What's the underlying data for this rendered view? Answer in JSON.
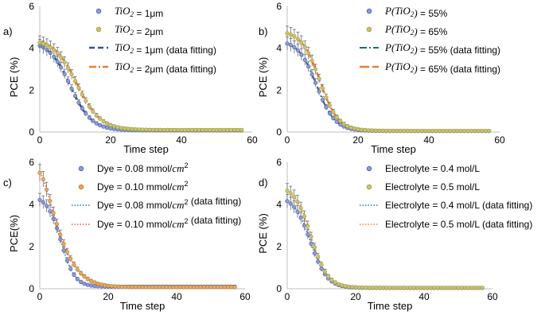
{
  "chart_data": [
    {
      "type": "line",
      "panel_label": "a)",
      "xlabel": "Time step",
      "ylabel": "PCE (%)",
      "xlim": [
        0,
        60
      ],
      "ylim": [
        0,
        6
      ],
      "xticks": [
        "0",
        "20",
        "40",
        "60"
      ],
      "yticks": [
        "0",
        "2",
        "4",
        "6"
      ],
      "legend_position": "top-right",
      "series": [
        {
          "name": "TiO2 = 1μm",
          "legend_parts": [
            [
              "TiO",
              "i"
            ],
            [
              "2",
              "sub"
            ],
            [
              " = 1μm",
              "n"
            ]
          ],
          "kind": "points",
          "color": "#8E9BD6",
          "stroke": "#4A5AA8",
          "model": "sig",
          "params": [
            4.35,
            8.6,
            3.0,
            0.08
          ]
        },
        {
          "name": "TiO2 = 2μm",
          "legend_parts": [
            [
              "TiO",
              "i"
            ],
            [
              "2",
              "sub"
            ],
            [
              " = 2μm",
              "n"
            ]
          ],
          "kind": "points",
          "color": "#C9C46A",
          "stroke": "#9E9A3E",
          "model": "sig",
          "params": [
            4.45,
            10.5,
            3.3,
            0.1
          ]
        },
        {
          "name": "TiO2 = 1μm (data fitting)",
          "legend_parts": [
            [
              "TiO",
              "i"
            ],
            [
              "2",
              "sub"
            ],
            [
              " = 1μm (data fitting)",
              "n"
            ]
          ],
          "kind": "fit",
          "color": "#2F5597",
          "dash": "7,4",
          "width": 2.6,
          "model": "sig",
          "params": [
            4.35,
            8.6,
            3.0,
            0.08
          ]
        },
        {
          "name": "TiO2 = 2μm (data fitting)",
          "legend_parts": [
            [
              "TiO",
              "i"
            ],
            [
              "2",
              "sub"
            ],
            [
              " = 2μm (data fitting)",
              "n"
            ]
          ],
          "kind": "fit",
          "color": "#ED7D31",
          "dash": "9,3,2,3",
          "width": 2.6,
          "model": "sig",
          "params": [
            4.5,
            10.5,
            3.3,
            0.1
          ]
        }
      ]
    },
    {
      "type": "line",
      "panel_label": "b)",
      "xlabel": "Time step",
      "ylabel": "PCE (%)",
      "xlim": [
        0,
        60
      ],
      "ylim": [
        0,
        6
      ],
      "xticks": [
        "0",
        "20",
        "40",
        "60"
      ],
      "yticks": [
        "0",
        "2",
        "4",
        "6"
      ],
      "legend_position": "top-right",
      "series": [
        {
          "name": "P(TiO2) = 55%",
          "legend_parts": [
            [
              "P",
              "i"
            ],
            [
              "(",
              "i"
            ],
            [
              "TiO",
              "i"
            ],
            [
              "2",
              "sub"
            ],
            [
              ")",
              "i"
            ],
            [
              " = 55%",
              "n"
            ]
          ],
          "kind": "points",
          "color": "#8E9BD6",
          "stroke": "#4A5AA8",
          "model": "sig",
          "params": [
            4.4,
            8.3,
            2.6,
            0.05
          ]
        },
        {
          "name": "P(TiO2) = 65%",
          "legend_parts": [
            [
              "P",
              "i"
            ],
            [
              "(",
              "i"
            ],
            [
              "TiO",
              "i"
            ],
            [
              "2",
              "sub"
            ],
            [
              ")",
              "i"
            ],
            [
              " = 65%",
              "n"
            ]
          ],
          "kind": "points",
          "color": "#C9C46A",
          "stroke": "#9E9A3E",
          "model": "sig",
          "params": [
            4.85,
            9.2,
            2.6,
            0.06
          ]
        },
        {
          "name": "P(TiO2) = 55% (data fitting)",
          "legend_parts": [
            [
              "P",
              "i"
            ],
            [
              "(",
              "i"
            ],
            [
              "TiO",
              "i"
            ],
            [
              "2",
              "sub"
            ],
            [
              ")",
              "i"
            ],
            [
              " = 55% (data fitting)",
              "n"
            ]
          ],
          "kind": "fit",
          "color": "#1F6B7A",
          "dash": "9,3,2,3",
          "width": 2,
          "model": "sig",
          "params": [
            4.4,
            8.3,
            2.6,
            0.05
          ]
        },
        {
          "name": "P(TiO2) = 65% (data fitting)",
          "legend_parts": [
            [
              "P",
              "i"
            ],
            [
              "(",
              "i"
            ],
            [
              "TiO",
              "i"
            ],
            [
              "2",
              "sub"
            ],
            [
              ")",
              "i"
            ],
            [
              " = 65% (data fitting)",
              "n"
            ]
          ],
          "kind": "fit",
          "color": "#ED7D31",
          "dash": "12,4",
          "width": 2.4,
          "model": "sig",
          "params": [
            4.85,
            9.2,
            2.6,
            0.06
          ]
        }
      ]
    },
    {
      "type": "line",
      "panel_label": "c)",
      "xlabel": "Time step",
      "ylabel": "PCE(%)",
      "xlim": [
        0,
        60
      ],
      "ylim": [
        0,
        6
      ],
      "xticks": [
        "0",
        "20",
        "40",
        "60"
      ],
      "yticks": [
        "0",
        "2",
        "4",
        "6"
      ],
      "legend_position": "top-right",
      "series": [
        {
          "name": "Dye = 0.08 mmol/cm2",
          "legend_parts": [
            [
              "Dye = 0.08 mmol/",
              "n"
            ],
            [
              "cm",
              "i"
            ],
            [
              "2",
              "sup"
            ]
          ],
          "kind": "points",
          "color": "#8E9BD6",
          "stroke": "#4A5AA8",
          "model": "sig",
          "params": [
            4.4,
            6.2,
            2.0,
            0.1
          ]
        },
        {
          "name": "Dye = 0.10 mmol/cm2",
          "legend_parts": [
            [
              "Dye = 0.10 mmol/",
              "n"
            ],
            [
              "cm",
              "i"
            ],
            [
              "2",
              "sup"
            ]
          ],
          "kind": "points",
          "color": "#E6A95C",
          "stroke": "#B77A2E",
          "model": "exp",
          "params": [
            5.5,
            0.14,
            1.45,
            0.08
          ]
        },
        {
          "name": "Dye = 0.08 mmol/cm2 (data fitting)",
          "legend_parts": [
            [
              "Dye = 0.08 mmol/",
              "n"
            ],
            [
              "cm",
              "i"
            ],
            [
              "2",
              "sup"
            ],
            [
              " (data fitting)",
              "n"
            ]
          ],
          "kind": "fit",
          "color": "#2E75B6",
          "dash": "1.5,2",
          "width": 1.6,
          "model": "sig",
          "params": [
            4.4,
            6.2,
            2.0,
            0.1
          ]
        },
        {
          "name": "Dye = 0.10 mmol/cm2 (data fitting)",
          "legend_parts": [
            [
              "Dye = 0.10 mmol/",
              "n"
            ],
            [
              "cm",
              "i"
            ],
            [
              "2",
              "sup"
            ],
            [
              " (data fitting)",
              "n"
            ]
          ],
          "kind": "fit",
          "color": "#E9573F",
          "dash": "1.5,2",
          "width": 1.6,
          "model": "exp",
          "params": [
            5.5,
            0.14,
            1.45,
            0.08
          ]
        }
      ]
    },
    {
      "type": "line",
      "panel_label": "d)",
      "xlabel": "Time step",
      "ylabel": "PCE (%)",
      "xlim": [
        0,
        60
      ],
      "ylim": [
        0,
        6
      ],
      "xticks": [
        "0",
        "20",
        "40",
        "60"
      ],
      "yticks": [
        "0",
        "2",
        "4",
        "6"
      ],
      "legend_position": "top-right",
      "series": [
        {
          "name": "Electrolyte = 0.4 mol/L",
          "legend_parts": [
            [
              "Electrolyte = 0.4 mol/L",
              "n"
            ]
          ],
          "kind": "points",
          "color": "#8E9BD6",
          "stroke": "#4A5AA8",
          "model": "sig",
          "params": [
            4.4,
            6.8,
            2.4,
            0.04
          ]
        },
        {
          "name": "Electrolyte = 0.5 mol/L",
          "legend_parts": [
            [
              "Electrolyte = 0.5 mol/L",
              "n"
            ]
          ],
          "kind": "points",
          "color": "#C9C46A",
          "stroke": "#9E9A3E",
          "model": "sig",
          "params": [
            4.9,
            7.0,
            2.4,
            0.05
          ]
        },
        {
          "name": "Electrolyte = 0.4 mol/L (data fitting)",
          "legend_parts": [
            [
              "Electrolyte = 0.4 mol/L (data fitting)",
              "n"
            ]
          ],
          "kind": "fit",
          "color": "#2E75B6",
          "dash": "1.5,2",
          "width": 1.6,
          "model": "sig",
          "params": [
            4.4,
            6.8,
            2.4,
            0.04
          ]
        },
        {
          "name": "Electrolyte = 0.5 mol/L (data fitting)",
          "legend_parts": [
            [
              "Electrolyte = 0.5 mol/L (data fitting)",
              "n"
            ]
          ],
          "kind": "fit",
          "color": "#ED7D31",
          "dash": "1.5,2",
          "width": 1.6,
          "model": "sig",
          "params": [
            4.9,
            7.0,
            2.4,
            0.05
          ]
        }
      ]
    }
  ]
}
